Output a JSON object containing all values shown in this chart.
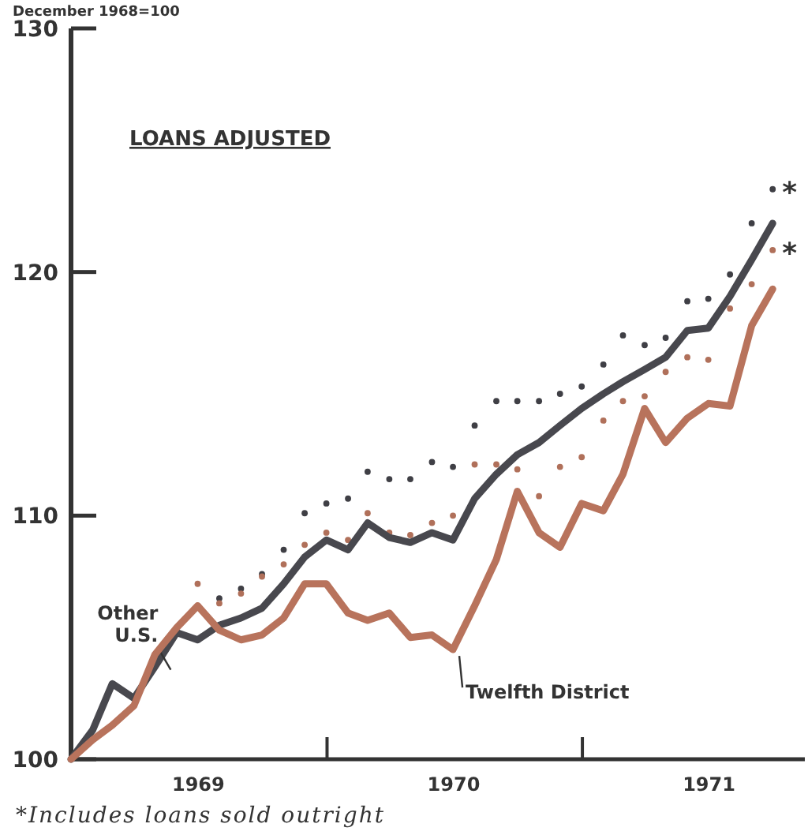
{
  "chart_data": {
    "type": "line",
    "title": "LOANS ADJUSTED",
    "ylabel": "December 1968=100",
    "x": [
      "1968-12-31",
      "1969-01-31",
      "1969-02-28",
      "1969-03-31",
      "1969-04-30",
      "1969-05-31",
      "1969-06-30",
      "1969-07-31",
      "1969-08-31",
      "1969-09-30",
      "1969-10-31",
      "1969-11-30",
      "1969-12-31",
      "1970-01-31",
      "1970-02-28",
      "1970-03-31",
      "1970-04-30",
      "1970-05-31",
      "1970-06-30",
      "1970-07-31",
      "1970-08-31",
      "1970-09-30",
      "1970-10-31",
      "1970-11-30",
      "1970-12-31",
      "1971-01-31",
      "1971-02-28",
      "1971-03-31",
      "1971-04-30",
      "1971-05-31",
      "1971-06-30",
      "1971-07-31",
      "1971-08-31",
      "1971-09-30"
    ],
    "xlim": [
      "1968-12-31",
      "1971-11-15"
    ],
    "xticks": [
      {
        "value": "1969-07-01",
        "label": "1969"
      },
      {
        "value": "1970-01-01",
        "label": null
      },
      {
        "value": "1970-07-01",
        "label": "1970"
      },
      {
        "value": "1971-01-01",
        "label": null
      },
      {
        "value": "1971-07-01",
        "label": "1971"
      }
    ],
    "ylim": [
      100,
      130
    ],
    "yticks": [
      100,
      110,
      120,
      130
    ],
    "grid": false,
    "series": [
      {
        "name": "*",
        "type": "scatter",
        "marker": "circle",
        "color": "#3f3f45",
        "values": [
          null,
          null,
          null,
          null,
          null,
          null,
          null,
          106.6,
          107.0,
          107.6,
          108.6,
          110.1,
          110.5,
          110.7,
          111.8,
          111.5,
          111.5,
          112.2,
          112.0,
          113.7,
          114.7,
          114.7,
          114.7,
          115.0,
          115.3,
          116.2,
          117.4,
          117.0,
          117.3,
          118.8,
          118.9,
          119.9,
          122.0,
          123.4
        ]
      },
      {
        "name": "*",
        "type": "scatter",
        "marker": "circle",
        "color": "#b0705a",
        "values": [
          null,
          null,
          null,
          null,
          null,
          null,
          107.2,
          106.4,
          106.8,
          107.5,
          108.0,
          108.8,
          109.3,
          109.0,
          110.1,
          109.3,
          109.2,
          109.7,
          110.0,
          112.1,
          112.1,
          111.9,
          110.8,
          112.0,
          112.4,
          113.9,
          114.7,
          114.9,
          115.9,
          116.5,
          116.4,
          118.5,
          119.5,
          120.9
        ]
      },
      {
        "name": "Other U.S.",
        "marker": "none",
        "line_style": "solid",
        "color": "#48484e",
        "values": [
          100,
          101.2,
          103.1,
          102.5,
          103.8,
          105.2,
          104.9,
          105.5,
          105.8,
          106.2,
          107.2,
          108.3,
          109.0,
          108.6,
          109.7,
          109.1,
          108.9,
          109.3,
          109.0,
          110.7,
          111.7,
          112.5,
          113.0,
          113.7,
          114.4,
          115.0,
          115.5,
          116.0,
          116.5,
          117.6,
          117.7,
          119.0,
          120.5,
          122.0
        ]
      },
      {
        "name": "Twelfth District",
        "marker": "none",
        "line_style": "solid",
        "color": "#b8735c",
        "values": [
          100,
          100.8,
          101.4,
          102.2,
          104.3,
          105.4,
          106.3,
          105.3,
          104.9,
          105.1,
          105.8,
          107.2,
          107.2,
          106.0,
          105.7,
          106.0,
          105.0,
          105.1,
          104.5,
          106.3,
          108.2,
          111.0,
          109.3,
          108.7,
          110.5,
          110.2,
          111.7,
          114.4,
          113.0,
          114.0,
          114.6,
          114.5,
          117.8,
          119.3
        ]
      }
    ],
    "annotations": [
      "*Includes loans sold outright"
    ]
  }
}
